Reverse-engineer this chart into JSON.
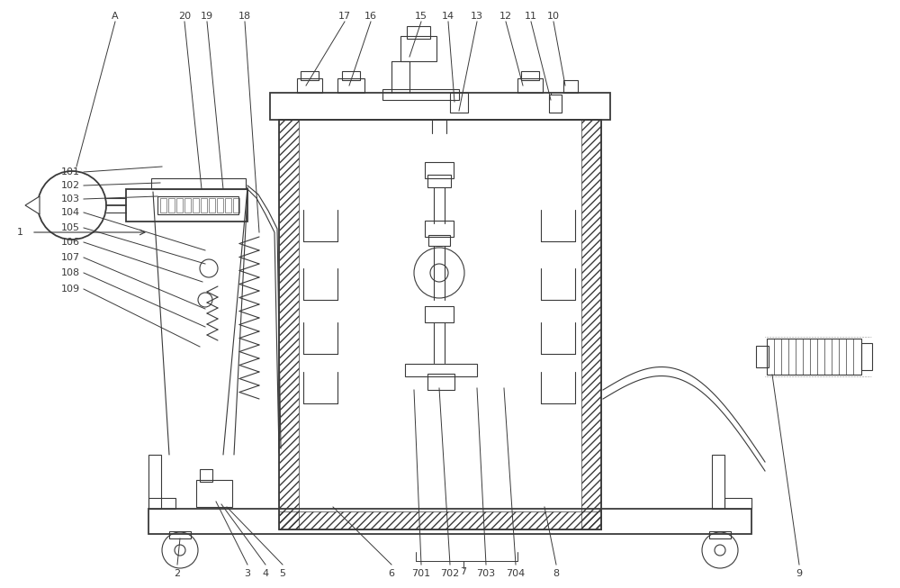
{
  "bg_color": "#ffffff",
  "line_color": "#3a3a3a",
  "figsize": [
    10.0,
    6.53
  ],
  "dpi": 100,
  "lw_main": 1.3,
  "lw_thin": 0.8,
  "label_fs": 8.0
}
